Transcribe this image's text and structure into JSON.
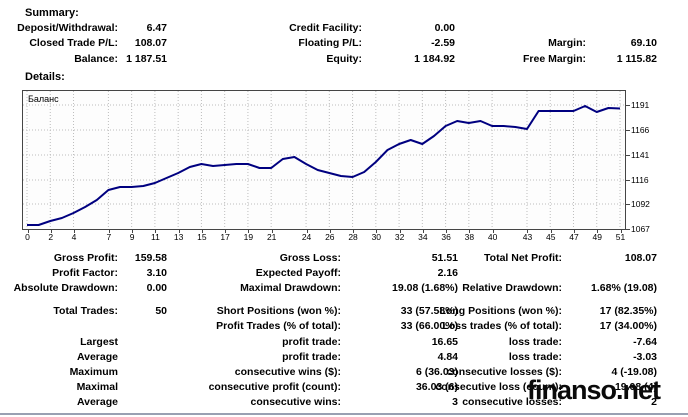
{
  "summary": {
    "heading": "Summary:",
    "rows": [
      {
        "a_label": "Deposit/Withdrawal:",
        "a_value": "6.47",
        "b_label": "Credit Facility:",
        "b_value": "0.00",
        "c_label": "",
        "c_value": ""
      },
      {
        "a_label": "Closed Trade P/L:",
        "a_value": "108.07",
        "b_label": "Floating P/L:",
        "b_value": "-2.59",
        "c_label": "Margin:",
        "c_value": "69.10"
      },
      {
        "a_label": "Balance:",
        "a_value": "1 187.51",
        "b_label": "Equity:",
        "b_value": "1 184.92",
        "c_label": "Free Margin:",
        "c_value": "1 115.82"
      }
    ]
  },
  "details": {
    "heading": "Details:"
  },
  "chart_data": {
    "type": "line",
    "title": "Баланс",
    "series": [
      {
        "name": "Balance",
        "values": [
          1071,
          1071,
          1075,
          1078,
          1083,
          1089,
          1096,
          1106,
          1109,
          1109,
          1110,
          1113,
          1118,
          1123,
          1129,
          1132,
          1130,
          1131,
          1132,
          1132,
          1128,
          1128,
          1137,
          1139,
          1132,
          1126,
          1123,
          1120,
          1119,
          1124,
          1134,
          1146,
          1152,
          1156,
          1152,
          1160,
          1170,
          1175,
          1173,
          1175,
          1170,
          1170,
          1169,
          1167,
          1185,
          1185,
          1185,
          1185,
          1190,
          1184,
          1188,
          1187.5
        ]
      }
    ],
    "x_tick_labels": [
      0,
      2,
      4,
      7,
      9,
      11,
      13,
      15,
      17,
      19,
      21,
      24,
      26,
      28,
      30,
      32,
      34,
      36,
      38,
      40,
      43,
      45,
      47,
      49,
      51
    ],
    "y_ticks": [
      1067,
      1092,
      1116,
      1141,
      1166,
      1191
    ],
    "ylim": [
      1067,
      1205
    ],
    "xlabel": "",
    "ylabel": "",
    "grid": true,
    "legend_position": "top-left",
    "line_color": "#000080",
    "grid_color": "#bdbdbd"
  },
  "stats": {
    "rows": [
      {
        "a_label": "Gross Profit:",
        "a_value": "159.58",
        "b_label": "Gross Loss:",
        "b_value": "51.51",
        "c_label": "Total Net Profit:",
        "c_value": "108.07"
      },
      {
        "a_label": "Profit Factor:",
        "a_value": "3.10",
        "b_label": "Expected Payoff:",
        "b_value": "2.16",
        "c_label": "",
        "c_value": ""
      },
      {
        "a_label": "Absolute Drawdown:",
        "a_value": "0.00",
        "b_label": "Maximal Drawdown:",
        "b_value": "19.08 (1.68%)",
        "c_label": "Relative Drawdown:",
        "c_value": "1.68% (19.08)"
      },
      {
        "a_label": "Total Trades:",
        "a_value": "50",
        "b_label": "Short Positions (won %):",
        "b_value": "33 (57.58%)",
        "c_label": "Long Positions (won %):",
        "c_value": "17 (82.35%)"
      },
      {
        "a_label": "",
        "a_value": "",
        "b_label": "Profit Trades (% of total):",
        "b_value": "33 (66.00%)",
        "c_label": "Loss trades (% of total):",
        "c_value": "17 (34.00%)"
      },
      {
        "a_label": "Largest",
        "a_value": "",
        "b_label": "profit trade:",
        "b_value": "16.65",
        "c_label": "loss trade:",
        "c_value": "-7.64"
      },
      {
        "a_label": "Average",
        "a_value": "",
        "b_label": "profit trade:",
        "b_value": "4.84",
        "c_label": "loss trade:",
        "c_value": "-3.03"
      },
      {
        "a_label": "Maximum",
        "a_value": "",
        "b_label": "consecutive wins ($):",
        "b_value": "6 (36.03)",
        "c_label": "consecutive losses ($):",
        "c_value": "4 (-19.08)"
      },
      {
        "a_label": "Maximal",
        "a_value": "",
        "b_label": "consecutive profit (count):",
        "b_value": "36.03 (6)",
        "c_label": "consecutive loss (count):",
        "c_value": "-19.08 (4)"
      },
      {
        "a_label": "Average",
        "a_value": "",
        "b_label": "consecutive wins:",
        "b_value": "3",
        "c_label": "consecutive losses:",
        "c_value": "2"
      }
    ]
  },
  "watermark": {
    "text": "finanso.net"
  }
}
